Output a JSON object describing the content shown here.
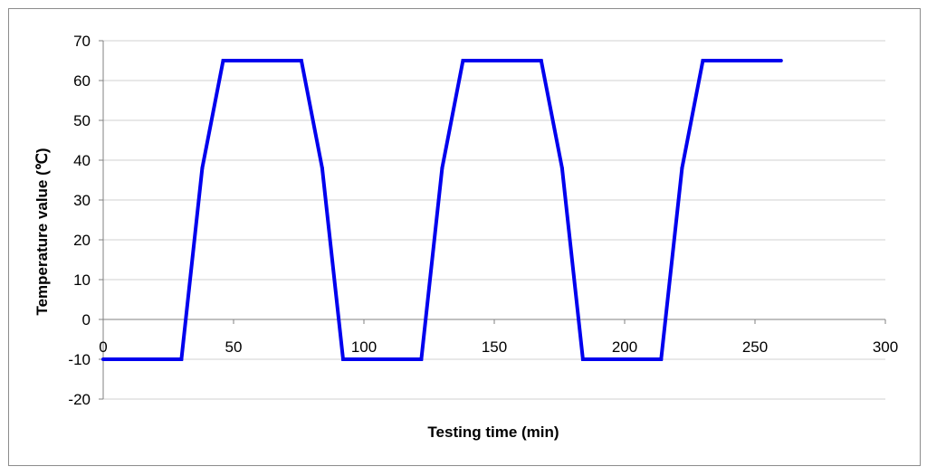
{
  "chart_data": {
    "type": "line",
    "xlabel": "Testing time (min)",
    "ylabel": "Temperature value (℃)",
    "xlim": [
      0,
      300
    ],
    "ylim": [
      -20,
      70
    ],
    "x_ticks": [
      0,
      50,
      100,
      150,
      200,
      250,
      300
    ],
    "y_ticks": [
      -20,
      -10,
      0,
      10,
      20,
      30,
      40,
      50,
      60,
      70
    ],
    "grid": "horizontal",
    "legend": "none",
    "series": [
      {
        "color": "#0000ee",
        "x": [
          0,
          30,
          38,
          46,
          76,
          84,
          92,
          122,
          130,
          138,
          168,
          176,
          184,
          214,
          222,
          230,
          260
        ],
        "y": [
          -10,
          -10,
          38,
          65,
          65,
          38,
          -10,
          -10,
          38,
          65,
          65,
          38,
          -10,
          -10,
          38,
          65,
          65
        ]
      }
    ]
  }
}
